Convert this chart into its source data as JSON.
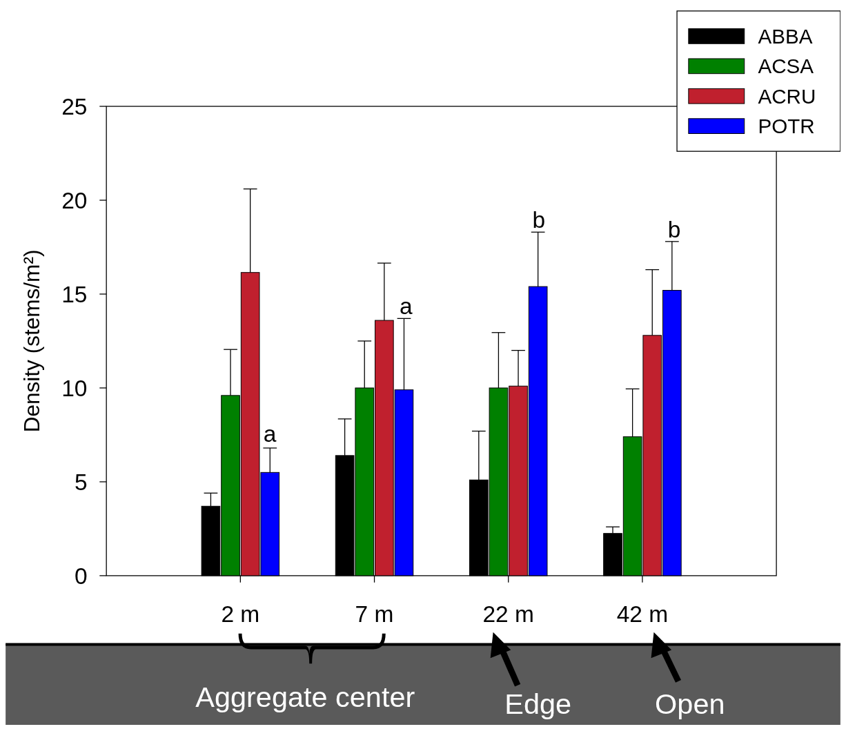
{
  "chart_data": {
    "type": "bar",
    "ylabel": "Density (stems/m²)",
    "categories": [
      "2 m",
      "7 m",
      "22 m",
      "42 m"
    ],
    "ylim": [
      0,
      25
    ],
    "yticks": [
      0,
      5,
      10,
      15,
      20,
      25
    ],
    "legend": "top right",
    "grid": false,
    "series": [
      {
        "name": "ABBA",
        "color": "#000000",
        "values": [
          3.7,
          6.4,
          5.1,
          2.25
        ],
        "errors": [
          [
            3.7,
            4.4
          ],
          [
            6.4,
            8.35
          ],
          [
            5.1,
            7.7
          ],
          [
            2.25,
            2.6
          ]
        ]
      },
      {
        "name": "ACSA",
        "color": "#008000",
        "values": [
          9.6,
          10.0,
          10.0,
          7.4
        ],
        "errors": [
          [
            9.6,
            12.05
          ],
          [
            10.0,
            12.5
          ],
          [
            10.0,
            12.95
          ],
          [
            7.4,
            9.95
          ]
        ]
      },
      {
        "name": "ACRU",
        "color": "#c0202e",
        "values": [
          16.15,
          13.6,
          10.1,
          12.8
        ],
        "errors": [
          [
            16.15,
            20.6
          ],
          [
            13.6,
            16.65
          ],
          [
            10.1,
            12.0
          ],
          [
            12.8,
            16.3
          ]
        ]
      },
      {
        "name": "POTR",
        "color": "#0000ff",
        "values": [
          5.5,
          9.9,
          15.4,
          15.2
        ],
        "errors": [
          [
            5.5,
            6.8
          ],
          [
            9.9,
            13.7
          ],
          [
            15.4,
            18.3
          ],
          [
            15.2,
            17.8
          ]
        ]
      }
    ],
    "annotations": [
      "a",
      "a",
      "b",
      "b",
      "Aggregate center",
      "Edge",
      "Open"
    ]
  }
}
